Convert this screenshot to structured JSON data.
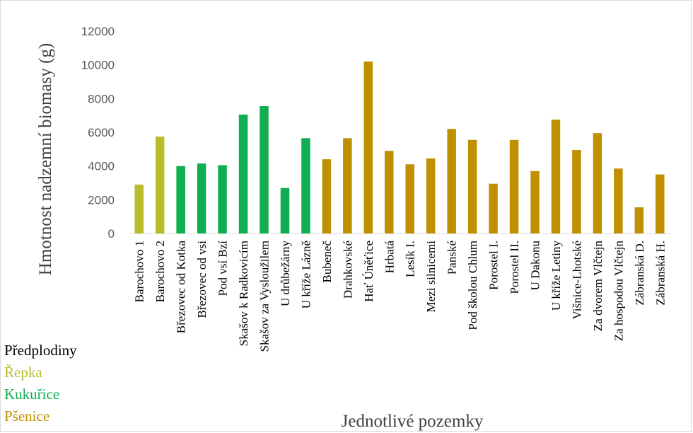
{
  "chart_data": {
    "type": "bar",
    "categories": [
      "Barochovo 1",
      "Barochovo 2",
      "Březovec od Kotka",
      "Březovec od vsi",
      "Pod vsí Bzí",
      "Skašov k Radkovicím",
      "Skašov za Vysloužilem",
      "U drůbežárny",
      "U kříže Lázně",
      "Bubeneč",
      "Drahkovské",
      "Hať Úněťice",
      "Hrbatá",
      "Lesík I.",
      "Mezi silnicemi",
      "Panské",
      "Pod školou Chlum",
      "Porostel I.",
      "Porostel II.",
      "U Dakonu",
      "U kříže Letiny",
      "Višnice-Lhotské",
      "Za dvorem Vlčtejn",
      "Za hospodou Vlčtejn",
      "Zábranská D.",
      "Zábranská H."
    ],
    "values": [
      2900,
      5750,
      4000,
      4150,
      4050,
      7050,
      7550,
      2700,
      5650,
      4400,
      5650,
      10200,
      4900,
      4100,
      4450,
      6200,
      5550,
      2950,
      5550,
      3700,
      6750,
      4950,
      5950,
      3850,
      1550,
      3500
    ],
    "groups": [
      "Řepka",
      "Řepka",
      "Kukuřice",
      "Kukuřice",
      "Kukuřice",
      "Kukuřice",
      "Kukuřice",
      "Kukuřice",
      "Kukuřice",
      "Pšenice",
      "Pšenice",
      "Pšenice",
      "Pšenice",
      "Pšenice",
      "Pšenice",
      "Pšenice",
      "Pšenice",
      "Pšenice",
      "Pšenice",
      "Pšenice",
      "Pšenice",
      "Pšenice",
      "Pšenice",
      "Pšenice",
      "Pšenice",
      "Pšenice"
    ],
    "title": "",
    "xlabel": "Jednotlivé pozemky",
    "ylabel": "Hmotnost nadzemní biomasy (g)",
    "ylim": [
      0,
      12000
    ],
    "yticks": [
      0,
      2000,
      4000,
      6000,
      8000,
      10000,
      12000
    ],
    "grid": false,
    "legend_position": "bottom-left"
  },
  "legend": {
    "title": "Předplodiny",
    "items": [
      {
        "label": "Řepka",
        "color": "#b9bd2c"
      },
      {
        "label": "Kukuřice",
        "color": "#0fae50"
      },
      {
        "label": "Pšenice",
        "color": "#bf9000"
      }
    ]
  }
}
